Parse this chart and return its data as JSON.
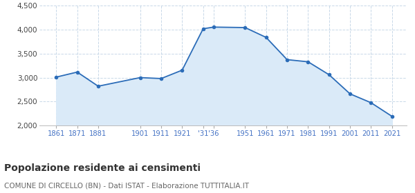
{
  "years": [
    1861,
    1871,
    1881,
    1901,
    1911,
    1921,
    1931,
    1936,
    1951,
    1961,
    1971,
    1981,
    1991,
    2001,
    2011,
    2021
  ],
  "population": [
    3010,
    3115,
    2820,
    3000,
    2980,
    3155,
    4020,
    4055,
    4045,
    3840,
    3375,
    3330,
    3060,
    2660,
    2475,
    2190
  ],
  "line_color": "#2b6cb8",
  "fill_color": "#daeaf8",
  "marker_color": "#2b6cb8",
  "background_color": "#ffffff",
  "title": "Popolazione residente ai censimenti",
  "subtitle": "COMUNE DI CIRCELLO (BN) - Dati ISTAT - Elaborazione TUTTITALIA.IT",
  "ylim": [
    2000,
    4500
  ],
  "yticks": [
    2000,
    2500,
    3000,
    3500,
    4000,
    4500
  ],
  "xlim_left": 1853,
  "xlim_right": 2028,
  "title_fontsize": 10,
  "subtitle_fontsize": 7.5,
  "axis_label_color": "#4472c4",
  "grid_color": "#c8d8e8",
  "x_tick_positions": [
    1861,
    1871,
    1881,
    1901,
    1911,
    1921,
    1931,
    1936,
    1951,
    1961,
    1971,
    1981,
    1991,
    2001,
    2011,
    2021
  ],
  "x_tick_labels": [
    "1861",
    "1871",
    "1881",
    "1901",
    "1911",
    "1921",
    "'31",
    "'36",
    "1951",
    "1961",
    "1971",
    "1981",
    "1991",
    "2001",
    "2011",
    "2021"
  ]
}
